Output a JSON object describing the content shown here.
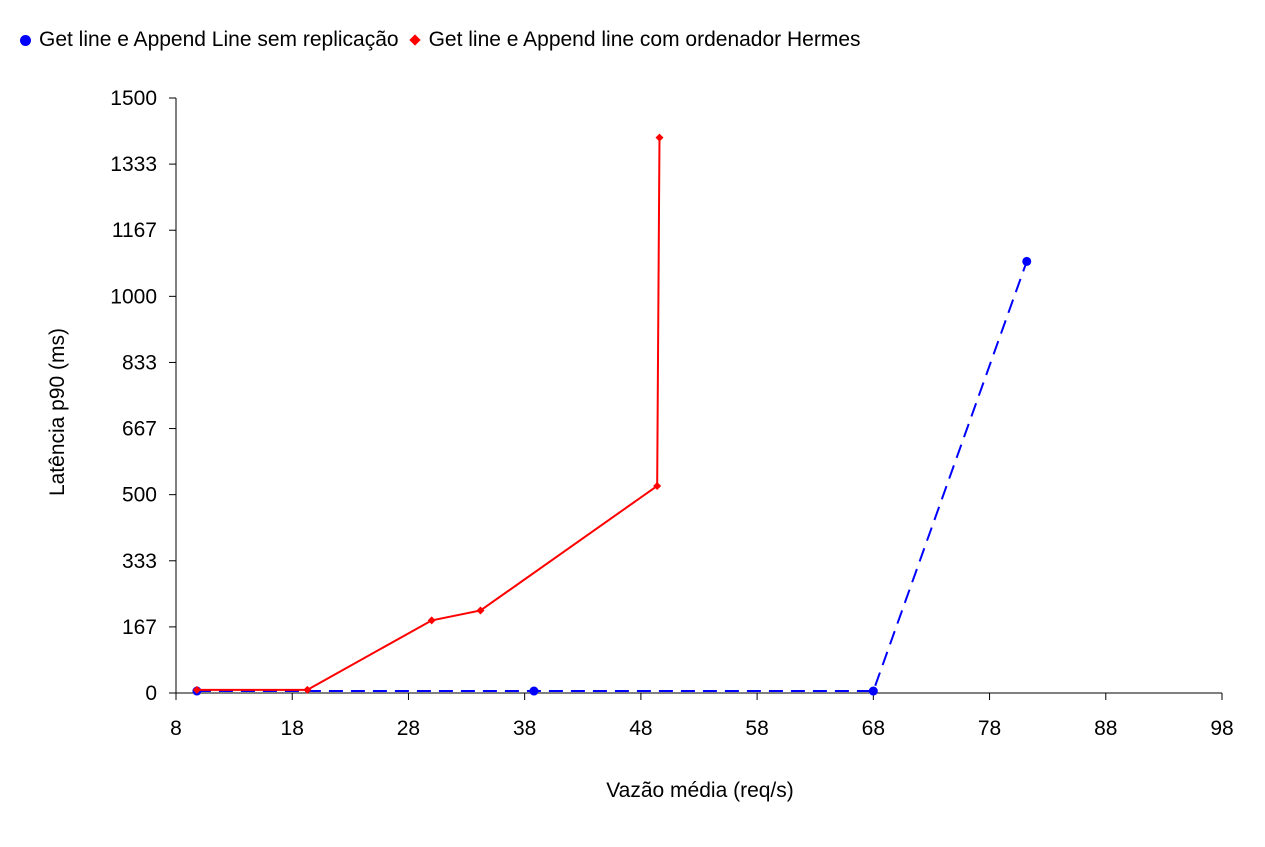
{
  "chart_data": {
    "type": "line",
    "xlabel": "Vazão média (req/s)",
    "ylabel": "Latência p90 (ms)",
    "xlim": [
      8,
      98
    ],
    "ylim": [
      0,
      1500
    ],
    "x_ticks": [
      "8",
      "18",
      "28",
      "38",
      "48",
      "58",
      "68",
      "78",
      "88",
      "98"
    ],
    "y_ticks": [
      "0",
      "167",
      "333",
      "500",
      "667",
      "833",
      "1000",
      "1167",
      "1333",
      "1500"
    ],
    "grid": false,
    "legend_position": "top-left",
    "series": [
      {
        "name": "Get line e Append Line sem replicação",
        "color": "#0000ff",
        "marker": "circle",
        "line_style": "dashed",
        "points": [
          [
            9.8,
            5
          ],
          [
            38.8,
            5
          ],
          [
            68,
            5
          ],
          [
            81.2,
            1088
          ]
        ]
      },
      {
        "name": "Get line e Append line com ordenador Hermes",
        "color": "#ff0000",
        "marker": "diamond",
        "line_style": "solid",
        "points": [
          [
            9.8,
            8
          ],
          [
            19.3,
            8
          ],
          [
            30,
            183
          ],
          [
            34.2,
            208
          ],
          [
            49.4,
            522
          ],
          [
            49.6,
            1400
          ]
        ]
      }
    ]
  }
}
